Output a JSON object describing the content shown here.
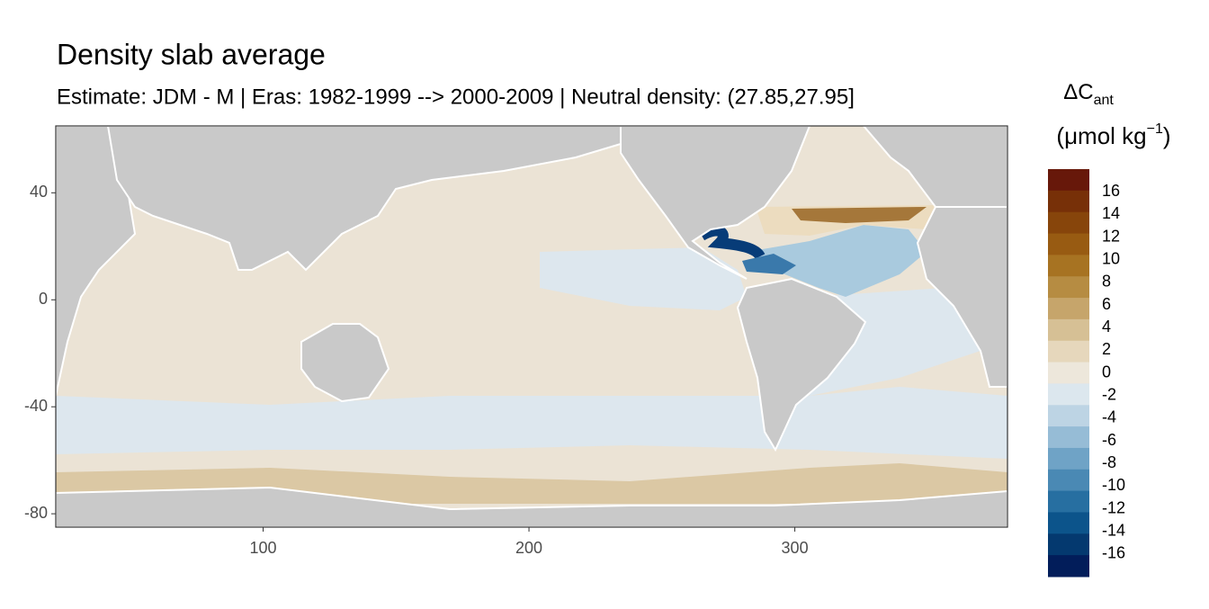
{
  "chart_data": {
    "type": "raster-map",
    "title": "Density slab average",
    "subtitle": "Estimate: JDM - M | Eras: 1982-1999 --> 2000-2009 | Neutral density: (27.85,27.95]",
    "xlim": [
      22,
      380
    ],
    "xticks": [
      100,
      200,
      300
    ],
    "ylim": [
      -85,
      65
    ],
    "yticks": [
      40,
      0,
      -40,
      -80
    ],
    "legend": {
      "title": "ΔC",
      "title_sub": "ant",
      "unit": "(μmol kg",
      "unit_sup": "−1",
      "unit_end": ")",
      "limits": [
        -18,
        18
      ],
      "breaks": [
        16,
        14,
        12,
        10,
        8,
        6,
        4,
        2,
        0,
        -2,
        -4,
        -6,
        -8,
        -10,
        -12,
        -14,
        -16
      ],
      "colors": [
        "#67180a",
        "#773008",
        "#87450b",
        "#985b12",
        "#a77322",
        "#b68c42",
        "#c6a56b",
        "#d6c095",
        "#e6d7bc",
        "#ede7db",
        "#dce7ee",
        "#bdd4e4",
        "#96bcd6",
        "#6fa3c6",
        "#4a89b4",
        "#276fa1",
        "#0c548b",
        "#04396f",
        "#021d5a"
      ]
    }
  }
}
